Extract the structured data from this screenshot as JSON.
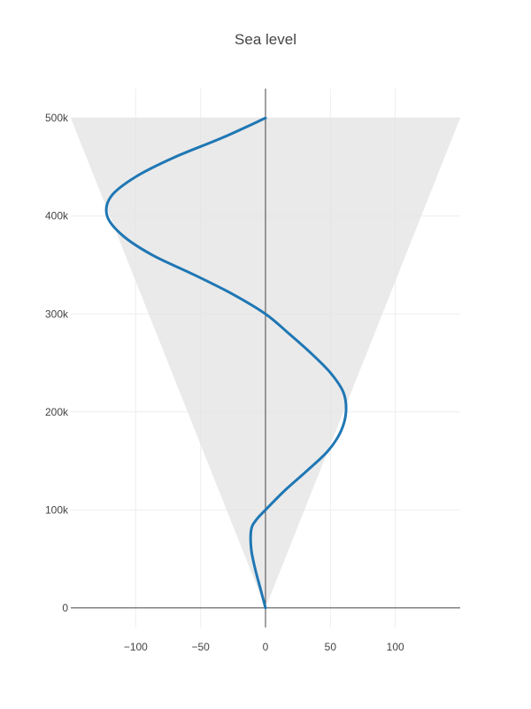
{
  "chart_data": {
    "type": "line",
    "title": "Sea level",
    "xlabel": "",
    "ylabel": "",
    "xlim": [
      -150,
      150
    ],
    "ylim": [
      -20000,
      530000
    ],
    "x_ticks": [
      -100,
      -50,
      0,
      50,
      100
    ],
    "x_tick_labels": [
      "−100",
      "−50",
      "0",
      "50",
      "100"
    ],
    "y_ticks": [
      0,
      100000,
      200000,
      300000,
      400000,
      500000
    ],
    "y_tick_labels": [
      "0",
      "100k",
      "200k",
      "300k",
      "400k",
      "500k"
    ],
    "grid": true,
    "legend": false,
    "colors": {
      "line": "#1f77b4",
      "band": "#e3e3e3",
      "grid": "#eeeeee",
      "zero_line": "#444444",
      "text": "#444444"
    },
    "band": {
      "name": "",
      "y": [
        0,
        500000
      ],
      "x_low": [
        0,
        -150
      ],
      "x_high": [
        0,
        150
      ]
    },
    "series": [
      {
        "name": "",
        "x": [
          0,
          -4,
          -8,
          -11,
          -11,
          -7,
          0,
          15,
          32,
          48,
          58,
          62,
          60,
          50,
          35,
          18,
          0,
          -25,
          -55,
          -87,
          -110,
          -122,
          -119,
          -100,
          -70,
          -33,
          0
        ],
        "y": [
          0,
          20000,
          40000,
          60000,
          80000,
          90000,
          100000,
          120000,
          140000,
          160000,
          180000,
          200000,
          220000,
          240000,
          260000,
          280000,
          300000,
          320000,
          340000,
          360000,
          380000,
          400000,
          420000,
          440000,
          460000,
          480000,
          500000
        ]
      }
    ]
  }
}
